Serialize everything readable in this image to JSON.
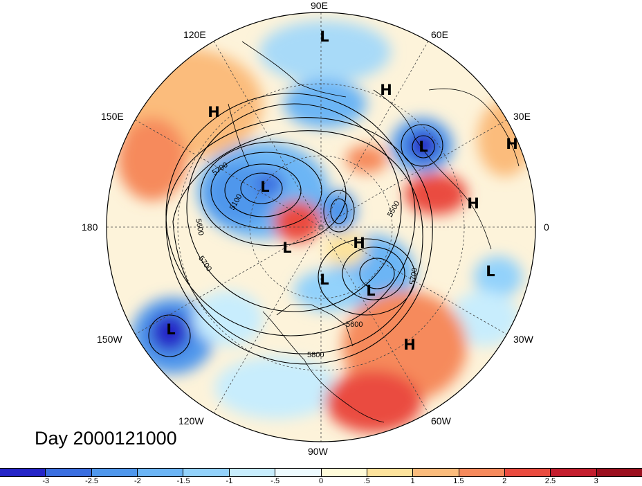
{
  "title": "Day 2000121000",
  "longitude_labels": [
    "90E",
    "60E",
    "30E",
    "0",
    "30W",
    "60W",
    "90W",
    "120W",
    "150W",
    "180",
    "150E",
    "120E"
  ],
  "pressure_system_labels": [
    "L",
    "H",
    "H",
    "L",
    "H",
    "L",
    "H",
    "L",
    "H",
    "L",
    "L",
    "L",
    "H",
    "L"
  ],
  "contour_labels": [
    "5700",
    "5100",
    "5600",
    "5700",
    "5500",
    "5700",
    "5600",
    "5800"
  ],
  "colorbar": {
    "tick_labels": [
      "-3",
      "-2.5",
      "-2",
      "-1.5",
      "-1",
      "-.5",
      "0",
      ".5",
      "1",
      "1.5",
      "2",
      "2.5",
      "3"
    ],
    "colors": [
      "#2525c8",
      "#3a6ee0",
      "#4f97ec",
      "#6cb5f5",
      "#93d2fb",
      "#c8edfd",
      "#eefbff",
      "#fffbd9",
      "#fde39c",
      "#fbbc7c",
      "#f68a5c",
      "#ea4b3f",
      "#c41e2e",
      "#9b0f1e"
    ]
  },
  "colors": {
    "ocean_base": "#f7f4ee",
    "contour": "#000000",
    "coastline": "#000000",
    "grid": "#444444"
  }
}
